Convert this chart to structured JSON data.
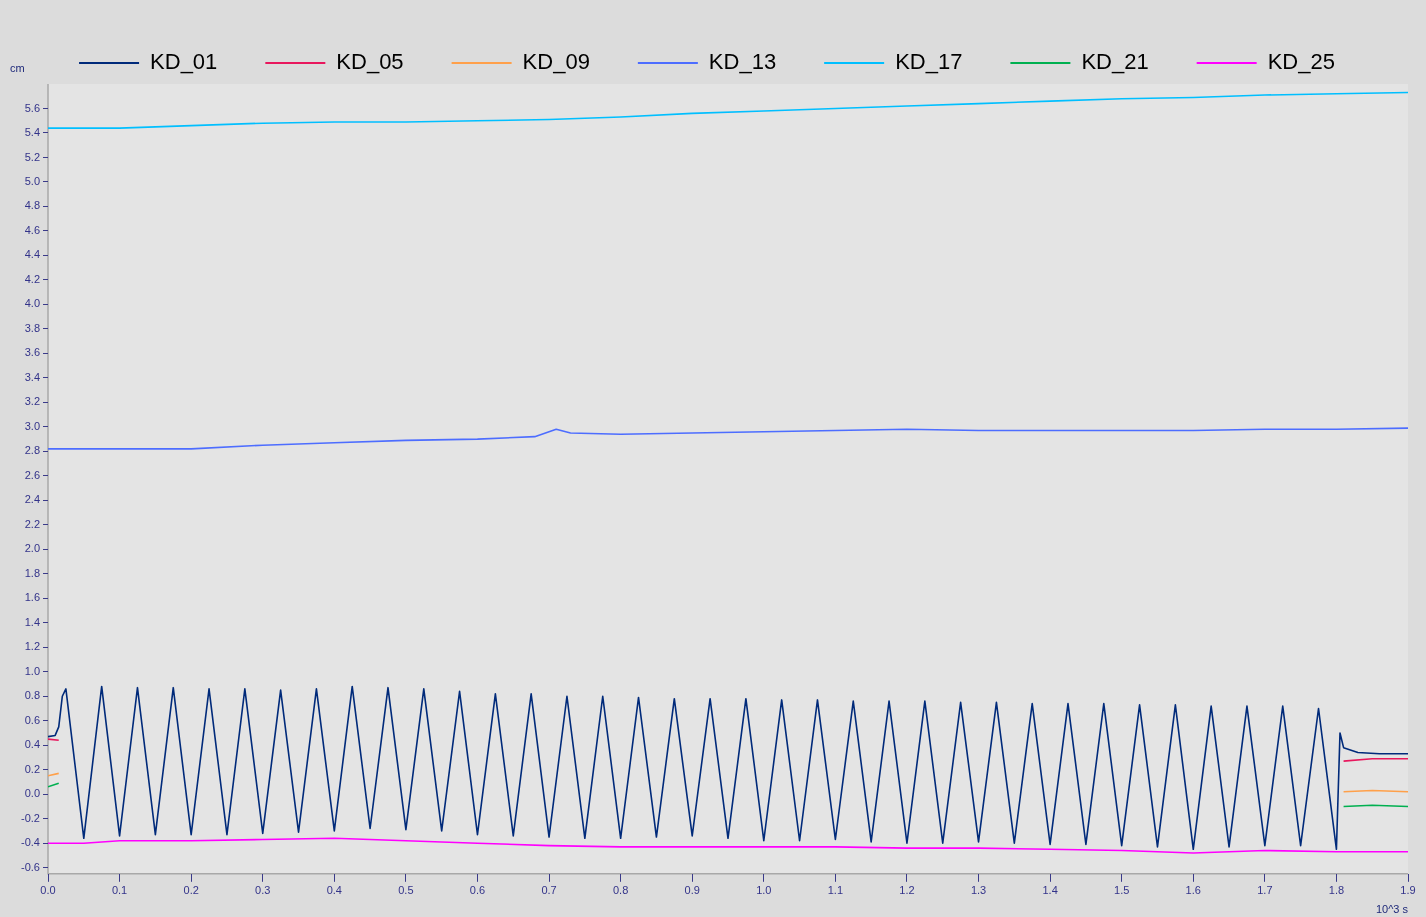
{
  "chart_data": {
    "type": "line",
    "xlabel": "10^3 s",
    "ylabel": "cm",
    "legend": "top",
    "grid": false,
    "marker": "none",
    "line_style": "solid",
    "xlim": [
      0,
      1.9
    ],
    "ylim": [
      -0.65,
      5.8
    ],
    "xticks": [
      {
        "value": 0,
        "label": "0.0"
      },
      0.1,
      0.2,
      0.3,
      0.4,
      0.5,
      0.6,
      0.7,
      0.8,
      0.9,
      {
        "value": 1,
        "label": "1.0"
      },
      1.1,
      1.2,
      1.3,
      1.4,
      1.5,
      1.6,
      1.7,
      1.8,
      1.9
    ],
    "yticks": [
      -0.6,
      -0.4,
      -0.2,
      {
        "value": 0,
        "label": "0.0"
      },
      0.2,
      0.4,
      0.6,
      0.8,
      {
        "value": 1,
        "label": "1.0"
      },
      1.2,
      1.4,
      1.6,
      1.8,
      {
        "value": 2,
        "label": "2.0"
      },
      2.2,
      2.4,
      2.6,
      2.8,
      {
        "value": 3,
        "label": "3.0"
      },
      3.2,
      3.4,
      3.6,
      3.8,
      {
        "value": 4,
        "label": "4.0"
      },
      4.2,
      4.4,
      4.6,
      4.8,
      {
        "value": 5,
        "label": "5.0"
      },
      5.2,
      5.4,
      5.6
    ],
    "series": [
      {
        "name": "KD_01",
        "color": "#002a7a",
        "x": [
          0,
          0.01,
          0.015,
          0.02,
          0.025,
          0.05,
          0.075,
          0.1,
          0.125,
          0.15,
          0.175,
          0.2,
          0.225,
          0.25,
          0.275,
          0.3,
          0.325,
          0.35,
          0.375,
          0.4,
          0.425,
          0.45,
          0.475,
          0.5,
          0.525,
          0.55,
          0.575,
          0.6,
          0.625,
          0.65,
          0.675,
          0.7,
          0.725,
          0.75,
          0.775,
          0.8,
          0.825,
          0.85,
          0.875,
          0.9,
          0.925,
          0.95,
          0.975,
          1.0,
          1.025,
          1.05,
          1.075,
          1.1,
          1.125,
          1.15,
          1.175,
          1.2,
          1.225,
          1.25,
          1.275,
          1.3,
          1.325,
          1.35,
          1.375,
          1.4,
          1.425,
          1.45,
          1.475,
          1.5,
          1.525,
          1.55,
          1.575,
          1.6,
          1.625,
          1.65,
          1.675,
          1.7,
          1.725,
          1.75,
          1.775,
          1.8,
          1.805,
          1.81,
          1.83,
          1.86,
          1.9
        ],
        "values": [
          0.47,
          0.48,
          0.55,
          0.8,
          0.86,
          -0.36,
          0.88,
          -0.34,
          0.87,
          -0.33,
          0.87,
          -0.33,
          0.86,
          -0.33,
          0.86,
          -0.32,
          0.85,
          -0.31,
          0.86,
          -0.3,
          0.88,
          -0.28,
          0.87,
          -0.29,
          0.86,
          -0.3,
          0.84,
          -0.33,
          0.82,
          -0.34,
          0.82,
          -0.35,
          0.8,
          -0.36,
          0.8,
          -0.36,
          0.79,
          -0.35,
          0.78,
          -0.34,
          0.78,
          -0.36,
          0.78,
          -0.38,
          0.77,
          -0.38,
          0.77,
          -0.37,
          0.76,
          -0.39,
          0.76,
          -0.4,
          0.76,
          -0.4,
          0.75,
          -0.39,
          0.75,
          -0.4,
          0.74,
          -0.41,
          0.74,
          -0.41,
          0.74,
          -0.42,
          0.73,
          -0.43,
          0.73,
          -0.45,
          0.72,
          -0.43,
          0.72,
          -0.42,
          0.72,
          -0.42,
          0.7,
          -0.45,
          0.5,
          0.38,
          0.34,
          0.33,
          0.33
        ]
      },
      {
        "name": "KD_05",
        "color": "#e8175d",
        "x": [
          0,
          0.015,
          0.016,
          1.81,
          1.85,
          1.9
        ],
        "values": [
          0.45,
          0.44,
          null,
          0.27,
          0.29,
          0.29
        ]
      },
      {
        "name": "KD_09",
        "color": "#ffa04a",
        "x": [
          0,
          0.015,
          0.016,
          1.81,
          1.85,
          1.9
        ],
        "values": [
          0.15,
          0.17,
          null,
          0.02,
          0.03,
          0.02
        ]
      },
      {
        "name": "KD_13",
        "color": "#4d6dff",
        "x": [
          0,
          0.1,
          0.2,
          0.3,
          0.4,
          0.5,
          0.6,
          0.68,
          0.71,
          0.73,
          0.8,
          0.9,
          1.0,
          1.1,
          1.2,
          1.3,
          1.4,
          1.5,
          1.6,
          1.7,
          1.8,
          1.9
        ],
        "values": [
          2.82,
          2.82,
          2.82,
          2.85,
          2.87,
          2.89,
          2.9,
          2.92,
          2.98,
          2.95,
          2.94,
          2.95,
          2.96,
          2.97,
          2.98,
          2.97,
          2.97,
          2.97,
          2.97,
          2.98,
          2.98,
          2.99
        ]
      },
      {
        "name": "KD_17",
        "color": "#00bfff",
        "x": [
          0,
          0.1,
          0.2,
          0.3,
          0.4,
          0.5,
          0.6,
          0.7,
          0.8,
          0.9,
          1.0,
          1.1,
          1.2,
          1.3,
          1.4,
          1.5,
          1.6,
          1.7,
          1.8,
          1.9
        ],
        "values": [
          5.44,
          5.44,
          5.46,
          5.48,
          5.49,
          5.49,
          5.5,
          5.51,
          5.53,
          5.56,
          5.58,
          5.6,
          5.62,
          5.64,
          5.66,
          5.68,
          5.69,
          5.71,
          5.72,
          5.73
        ]
      },
      {
        "name": "KD_21",
        "color": "#00b050",
        "x": [
          0,
          0.015,
          0.016,
          1.81,
          1.85,
          1.9
        ],
        "values": [
          0.06,
          0.09,
          null,
          -0.1,
          -0.09,
          -0.1
        ]
      },
      {
        "name": "KD_25",
        "color": "#ff00ff",
        "x": [
          0,
          0.02,
          0.05,
          0.1,
          0.2,
          0.3,
          0.4,
          0.5,
          0.6,
          0.7,
          0.8,
          0.9,
          1.0,
          1.1,
          1.2,
          1.3,
          1.4,
          1.5,
          1.6,
          1.7,
          1.8,
          1.9
        ],
        "values": [
          -0.4,
          -0.4,
          -0.4,
          -0.38,
          -0.38,
          -0.37,
          -0.36,
          -0.38,
          -0.4,
          -0.42,
          -0.43,
          -0.43,
          -0.43,
          -0.43,
          -0.44,
          -0.44,
          -0.45,
          -0.46,
          -0.48,
          -0.46,
          -0.47,
          -0.47
        ]
      }
    ]
  }
}
